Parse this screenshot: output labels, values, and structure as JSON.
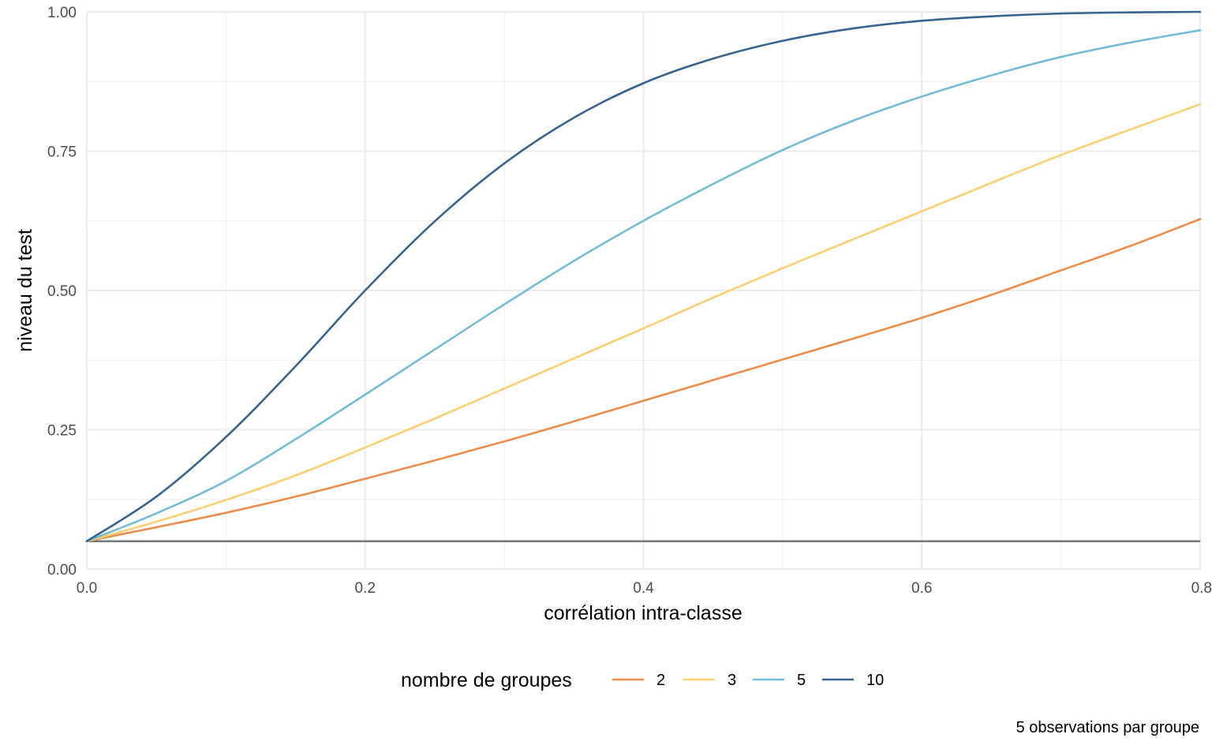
{
  "chart_data": {
    "type": "line",
    "title": "",
    "xlabel": "corrélation intra-classe",
    "ylabel": "niveau du test",
    "caption": "5 observations par groupe",
    "xlim": [
      0,
      0.8
    ],
    "ylim": [
      0,
      1
    ],
    "x_ticks": [
      0,
      0.2,
      0.4,
      0.6,
      0.8
    ],
    "x_tick_labels": [
      "0.0",
      "0.2",
      "0.4",
      "0.6",
      "0.8"
    ],
    "y_ticks": [
      0,
      0.25,
      0.5,
      0.75,
      1
    ],
    "y_tick_labels": [
      "0.00",
      "0.25",
      "0.50",
      "0.75",
      "1.00"
    ],
    "grid": true,
    "legend": {
      "title": "nombre de groupes",
      "position": "bottom"
    },
    "reference_line": {
      "y": 0.05,
      "color": "#777777"
    },
    "x": [
      0,
      0.05,
      0.1,
      0.15,
      0.2,
      0.25,
      0.3,
      0.35,
      0.4,
      0.45,
      0.5,
      0.55,
      0.6,
      0.65,
      0.7,
      0.75,
      0.8
    ],
    "series": [
      {
        "name": "2",
        "color": "#EC8D4B",
        "values": [
          0.05,
          0.075,
          0.101,
          0.13,
          0.162,
          0.195,
          0.229,
          0.265,
          0.302,
          0.339,
          0.376,
          0.413,
          0.451,
          0.492,
          0.536,
          0.58,
          0.628
        ]
      },
      {
        "name": "3",
        "color": "#F9D172",
        "values": [
          0.05,
          0.085,
          0.124,
          0.168,
          0.218,
          0.27,
          0.324,
          0.378,
          0.432,
          0.487,
          0.54,
          0.591,
          0.642,
          0.693,
          0.743,
          0.789,
          0.834
        ]
      },
      {
        "name": "5",
        "color": "#74BCD5",
        "values": [
          0.05,
          0.1,
          0.158,
          0.233,
          0.313,
          0.394,
          0.475,
          0.553,
          0.625,
          0.691,
          0.752,
          0.804,
          0.848,
          0.886,
          0.919,
          0.945,
          0.967
        ]
      },
      {
        "name": "10",
        "color": "#37648F",
        "values": [
          0.05,
          0.13,
          0.237,
          0.364,
          0.5,
          0.624,
          0.728,
          0.81,
          0.872,
          0.916,
          0.948,
          0.97,
          0.984,
          0.992,
          0.997,
          0.999,
          1.0
        ]
      }
    ]
  }
}
